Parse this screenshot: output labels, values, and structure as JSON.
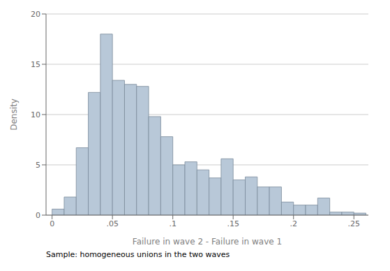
{
  "chart_data": {
    "type": "histogram",
    "bins": [
      0.0,
      0.01,
      0.02,
      0.03,
      0.04,
      0.05,
      0.06,
      0.07,
      0.08,
      0.09,
      0.1,
      0.11,
      0.12,
      0.13,
      0.14,
      0.15,
      0.16,
      0.17,
      0.18,
      0.19,
      0.2,
      0.21,
      0.22,
      0.23,
      0.24,
      0.25,
      0.26
    ],
    "values": [
      0.6,
      1.8,
      6.7,
      12.2,
      18.0,
      13.4,
      13.0,
      12.8,
      9.8,
      7.8,
      5.0,
      5.3,
      4.5,
      3.7,
      5.6,
      3.5,
      3.8,
      2.8,
      2.8,
      1.3,
      1.0,
      1.0,
      1.7,
      0.3,
      0.3,
      0.2
    ],
    "color": "#b8c8d8",
    "xlim": [
      -0.005,
      0.262
    ],
    "ylim": [
      0,
      20
    ],
    "xticks": [
      0,
      {
        "value": 0.05,
        "label": ".05"
      },
      {
        "value": 0.1,
        "label": ".1"
      },
      {
        "value": 0.15,
        "label": ".15"
      },
      {
        "value": 0.2,
        "label": ".2"
      },
      {
        "value": 0.25,
        "label": ".25"
      }
    ],
    "yticks": [
      0,
      5,
      10,
      15,
      20
    ],
    "xlabel": "Failure in wave 2 - Failure in wave 1",
    "ylabel": "Density",
    "caption": "Sample: homogeneous unions in the two waves",
    "grid": true
  }
}
